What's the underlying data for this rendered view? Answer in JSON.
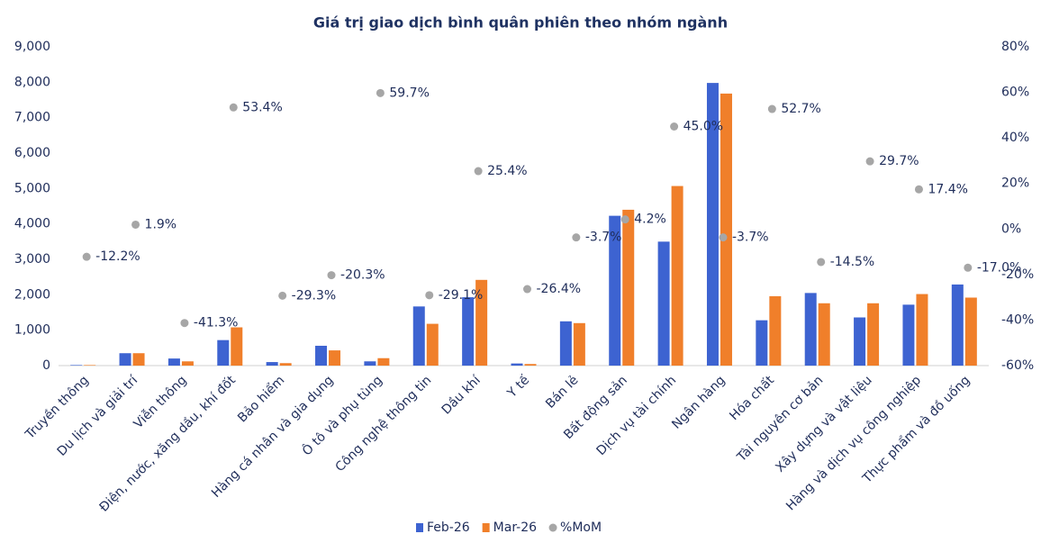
{
  "chart_data": {
    "type": "bar_scatter",
    "title": "Giá trị giao dịch bình quân phiên theo nhóm ngành",
    "categories": [
      "Truyền thông",
      "Du lịch và giải trí",
      "Viễn thông",
      "Điện, nước, xăng dầu, khí đốt",
      "Bảo hiểm",
      "Hàng cá nhân và gia dụng",
      "Ô tô và phụ tùng",
      "Công nghệ thông tin",
      "Dầu khí",
      "Y tế",
      "Bán lẻ",
      "Bất động sản",
      "Dịch vụ tài chính",
      "Ngân hàng",
      "Hóa chất",
      "Tài nguyên cơ bản",
      "Xây dựng và vật liệu",
      "Hàng và dịch vụ công nghiệp",
      "Thực phẩm và đồ uống"
    ],
    "series": [
      {
        "name": "Feb-26",
        "color": "#3d63d1",
        "type": "bar",
        "values": [
          15,
          350,
          200,
          720,
          100,
          560,
          120,
          1670,
          1930,
          60,
          1250,
          4230,
          3500,
          7980,
          1280,
          2050,
          1360,
          1720,
          2290
        ]
      },
      {
        "name": "Mar-26",
        "color": "#f07f2a",
        "type": "bar",
        "values": [
          15,
          350,
          120,
          1080,
          70,
          430,
          210,
          1180,
          2420,
          45,
          1200,
          4400,
          5070,
          7680,
          1960,
          1760,
          1760,
          2020,
          1920
        ]
      },
      {
        "name": "%MoM",
        "color": "#a6a6a6",
        "type": "scatter",
        "axis": "y2",
        "values": [
          -12.2,
          1.9,
          -41.3,
          53.4,
          -29.3,
          -20.3,
          59.7,
          -29.1,
          25.4,
          -26.4,
          -3.7,
          4.2,
          45.0,
          -3.7,
          52.7,
          -14.5,
          29.7,
          17.4,
          -17.0
        ],
        "value_labels": [
          "-12.2%",
          "1.9%",
          "-41.3%",
          "53.4%",
          "-29.3%",
          "-20.3%",
          "59.7%",
          "-29.1%",
          "25.4%",
          "-26.4%",
          "-3.7%",
          "4.2%",
          "45.0%",
          "-3.7%",
          "52.7%",
          "-14.5%",
          "29.7%",
          "17.4%",
          "-17.0%"
        ]
      }
    ],
    "ylim": [
      0,
      9000
    ],
    "yticks": [
      0,
      {
        "value": 1000,
        "label": "1,000"
      },
      {
        "value": 2000,
        "label": "2,000"
      },
      {
        "value": 3000,
        "label": "3,000"
      },
      {
        "value": 4000,
        "label": "4,000"
      },
      {
        "value": 5000,
        "label": "5,000"
      },
      {
        "value": 6000,
        "label": "6,000"
      },
      {
        "value": 7000,
        "label": "7,000"
      },
      {
        "value": 8000,
        "label": "8,000"
      },
      {
        "value": 9000,
        "label": "9,000"
      }
    ],
    "y2lim": [
      -60,
      80
    ],
    "y2ticks": [
      {
        "value": -60,
        "label": "-60%"
      },
      {
        "value": -40,
        "label": "-40%"
      },
      {
        "value": -20,
        "label": "-20%"
      },
      {
        "value": 0,
        "label": "0%"
      },
      {
        "value": 20,
        "label": "20%"
      },
      {
        "value": 40,
        "label": "40%"
      },
      {
        "value": 60,
        "label": "60%"
      },
      {
        "value": 80,
        "label": "80%"
      }
    ],
    "legend": "bottom"
  }
}
